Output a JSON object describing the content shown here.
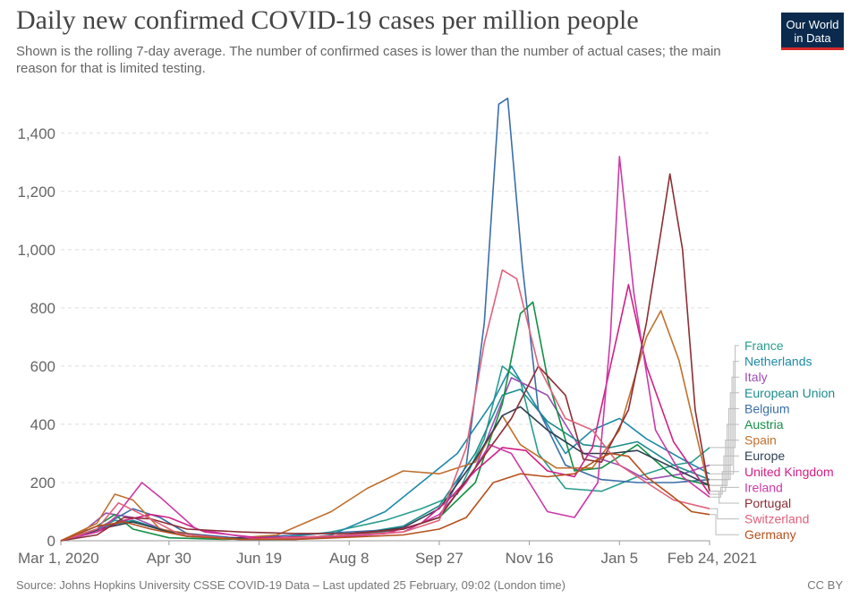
{
  "header": {
    "title": "Daily new confirmed COVID-19 cases per million people",
    "subtitle": "Shown is the rolling 7-day average. The number of confirmed cases is lower than the number of actual cases; the main reason for that is limited testing."
  },
  "logo": {
    "line1": "Our World",
    "line2": "in Data",
    "bg_color": "#0b2a4d",
    "accent_color": "#d42a2a"
  },
  "footer": {
    "source": "Source: Johns Hopkins University CSSE COVID-19 Data – Last updated 25 February, 09:02 (London time)",
    "license": "CC BY"
  },
  "chart_data": {
    "type": "line",
    "title": "Daily new confirmed COVID-19 cases per million people",
    "x_unit": "days since Mar 1, 2020",
    "xlim": [
      0,
      360
    ],
    "ylim": [
      0,
      1550
    ],
    "yticks": [
      0,
      200,
      400,
      600,
      800,
      1000,
      1200,
      1400
    ],
    "ytick_labels": [
      "0",
      "200",
      "400",
      "600",
      "800",
      "1,000",
      "1,200",
      "1,400"
    ],
    "xticks": [
      0,
      60,
      110,
      160,
      210,
      260,
      310,
      360
    ],
    "xtick_labels": [
      "Mar 1, 2020",
      "Apr 30",
      "Jun 19",
      "Aug 8",
      "Sep 27",
      "Nov 16",
      "Jan 5",
      "Feb 24, 2021"
    ],
    "grid": true,
    "series": [
      {
        "name": "France",
        "color": "#2a9d8f",
        "end_value": 320,
        "points": [
          [
            0,
            0
          ],
          [
            20,
            40
          ],
          [
            30,
            70
          ],
          [
            45,
            60
          ],
          [
            60,
            30
          ],
          [
            90,
            10
          ],
          [
            120,
            8
          ],
          [
            150,
            30
          ],
          [
            180,
            70
          ],
          [
            200,
            110
          ],
          [
            220,
            160
          ],
          [
            235,
            350
          ],
          [
            245,
            600
          ],
          [
            255,
            550
          ],
          [
            265,
            300
          ],
          [
            280,
            180
          ],
          [
            300,
            170
          ],
          [
            320,
            220
          ],
          [
            340,
            260
          ],
          [
            350,
            270
          ],
          [
            360,
            320
          ]
        ]
      },
      {
        "name": "Netherlands",
        "color": "#1f8aa8",
        "end_value": 230,
        "points": [
          [
            0,
            0
          ],
          [
            20,
            30
          ],
          [
            35,
            70
          ],
          [
            50,
            50
          ],
          [
            70,
            15
          ],
          [
            100,
            4
          ],
          [
            130,
            5
          ],
          [
            150,
            20
          ],
          [
            180,
            100
          ],
          [
            200,
            200
          ],
          [
            220,
            300
          ],
          [
            240,
            480
          ],
          [
            250,
            600
          ],
          [
            265,
            450
          ],
          [
            280,
            300
          ],
          [
            295,
            380
          ],
          [
            310,
            420
          ],
          [
            325,
            350
          ],
          [
            345,
            280
          ],
          [
            360,
            230
          ]
        ]
      },
      {
        "name": "Italy",
        "color": "#9c4fb2",
        "end_value": 260,
        "points": [
          [
            0,
            0
          ],
          [
            10,
            20
          ],
          [
            25,
            95
          ],
          [
            40,
            80
          ],
          [
            60,
            30
          ],
          [
            90,
            8
          ],
          [
            130,
            5
          ],
          [
            160,
            15
          ],
          [
            190,
            40
          ],
          [
            210,
            80
          ],
          [
            230,
            250
          ],
          [
            250,
            560
          ],
          [
            270,
            500
          ],
          [
            290,
            300
          ],
          [
            310,
            260
          ],
          [
            325,
            210
          ],
          [
            345,
            230
          ],
          [
            360,
            260
          ]
        ]
      },
      {
        "name": "European Union",
        "color": "#1d8c8c",
        "end_value": 210,
        "points": [
          [
            0,
            0
          ],
          [
            25,
            50
          ],
          [
            40,
            70
          ],
          [
            60,
            30
          ],
          [
            90,
            8
          ],
          [
            130,
            8
          ],
          [
            160,
            20
          ],
          [
            190,
            50
          ],
          [
            210,
            120
          ],
          [
            230,
            300
          ],
          [
            245,
            500
          ],
          [
            255,
            520
          ],
          [
            270,
            410
          ],
          [
            290,
            330
          ],
          [
            305,
            320
          ],
          [
            320,
            340
          ],
          [
            340,
            260
          ],
          [
            360,
            210
          ]
        ]
      },
      {
        "name": "Belgium",
        "color": "#3b6ea8",
        "end_value": 210,
        "points": [
          [
            0,
            0
          ],
          [
            20,
            40
          ],
          [
            40,
            110
          ],
          [
            55,
            80
          ],
          [
            70,
            25
          ],
          [
            100,
            8
          ],
          [
            130,
            20
          ],
          [
            160,
            30
          ],
          [
            190,
            40
          ],
          [
            210,
            80
          ],
          [
            225,
            260
          ],
          [
            235,
            750
          ],
          [
            243,
            1500
          ],
          [
            248,
            1520
          ],
          [
            256,
            950
          ],
          [
            265,
            450
          ],
          [
            280,
            260
          ],
          [
            300,
            210
          ],
          [
            320,
            200
          ],
          [
            340,
            200
          ],
          [
            360,
            210
          ]
        ]
      },
      {
        "name": "Austria",
        "color": "#148f45",
        "end_value": 190,
        "points": [
          [
            0,
            0
          ],
          [
            20,
            50
          ],
          [
            30,
            90
          ],
          [
            40,
            40
          ],
          [
            60,
            10
          ],
          [
            90,
            5
          ],
          [
            130,
            10
          ],
          [
            160,
            20
          ],
          [
            190,
            40
          ],
          [
            210,
            80
          ],
          [
            230,
            200
          ],
          [
            245,
            470
          ],
          [
            255,
            780
          ],
          [
            262,
            820
          ],
          [
            270,
            560
          ],
          [
            285,
            240
          ],
          [
            300,
            250
          ],
          [
            320,
            330
          ],
          [
            340,
            220
          ],
          [
            360,
            190
          ]
        ]
      },
      {
        "name": "Spain",
        "color": "#c0702e",
        "end_value": 170,
        "points": [
          [
            0,
            0
          ],
          [
            20,
            60
          ],
          [
            30,
            160
          ],
          [
            40,
            140
          ],
          [
            55,
            40
          ],
          [
            90,
            6
          ],
          [
            120,
            20
          ],
          [
            150,
            100
          ],
          [
            170,
            180
          ],
          [
            190,
            240
          ],
          [
            210,
            230
          ],
          [
            230,
            270
          ],
          [
            245,
            430
          ],
          [
            255,
            330
          ],
          [
            275,
            250
          ],
          [
            295,
            250
          ],
          [
            310,
            380
          ],
          [
            325,
            700
          ],
          [
            333,
            790
          ],
          [
            343,
            620
          ],
          [
            360,
            170
          ]
        ]
      },
      {
        "name": "Europe",
        "color": "#2e3f50",
        "end_value": 190,
        "points": [
          [
            0,
            0
          ],
          [
            25,
            45
          ],
          [
            40,
            65
          ],
          [
            60,
            30
          ],
          [
            90,
            10
          ],
          [
            130,
            10
          ],
          [
            160,
            20
          ],
          [
            190,
            45
          ],
          [
            210,
            110
          ],
          [
            230,
            280
          ],
          [
            245,
            430
          ],
          [
            255,
            460
          ],
          [
            270,
            380
          ],
          [
            290,
            300
          ],
          [
            305,
            300
          ],
          [
            320,
            310
          ],
          [
            340,
            250
          ],
          [
            360,
            190
          ]
        ]
      },
      {
        "name": "United Kingdom",
        "color": "#d21f85",
        "end_value": 160,
        "points": [
          [
            0,
            0
          ],
          [
            20,
            30
          ],
          [
            35,
            70
          ],
          [
            50,
            90
          ],
          [
            60,
            80
          ],
          [
            80,
            30
          ],
          [
            110,
            10
          ],
          [
            150,
            15
          ],
          [
            180,
            25
          ],
          [
            200,
            60
          ],
          [
            215,
            140
          ],
          [
            230,
            240
          ],
          [
            245,
            320
          ],
          [
            258,
            310
          ],
          [
            270,
            240
          ],
          [
            285,
            220
          ],
          [
            295,
            320
          ],
          [
            305,
            600
          ],
          [
            315,
            880
          ],
          [
            325,
            600
          ],
          [
            340,
            340
          ],
          [
            360,
            160
          ]
        ]
      },
      {
        "name": "Ireland",
        "color": "#cc3aa5",
        "end_value": 150,
        "points": [
          [
            0,
            0
          ],
          [
            20,
            30
          ],
          [
            30,
            80
          ],
          [
            45,
            200
          ],
          [
            55,
            150
          ],
          [
            75,
            40
          ],
          [
            110,
            5
          ],
          [
            150,
            10
          ],
          [
            190,
            30
          ],
          [
            210,
            90
          ],
          [
            225,
            200
          ],
          [
            238,
            330
          ],
          [
            250,
            300
          ],
          [
            270,
            100
          ],
          [
            285,
            80
          ],
          [
            298,
            200
          ],
          [
            305,
            700
          ],
          [
            310,
            1320
          ],
          [
            318,
            850
          ],
          [
            330,
            380
          ],
          [
            345,
            220
          ],
          [
            360,
            150
          ]
        ]
      },
      {
        "name": "Portugal",
        "color": "#8c2d34",
        "end_value": 170,
        "points": [
          [
            0,
            0
          ],
          [
            20,
            20
          ],
          [
            35,
            80
          ],
          [
            50,
            75
          ],
          [
            70,
            40
          ],
          [
            100,
            30
          ],
          [
            130,
            25
          ],
          [
            160,
            25
          ],
          [
            190,
            40
          ],
          [
            210,
            80
          ],
          [
            230,
            250
          ],
          [
            250,
            420
          ],
          [
            265,
            600
          ],
          [
            280,
            500
          ],
          [
            290,
            280
          ],
          [
            300,
            270
          ],
          [
            315,
            450
          ],
          [
            325,
            750
          ],
          [
            333,
            1060
          ],
          [
            338,
            1260
          ],
          [
            345,
            1000
          ],
          [
            352,
            450
          ],
          [
            360,
            170
          ]
        ]
      },
      {
        "name": "Switzerland",
        "color": "#e0617c",
        "end_value": 110,
        "points": [
          [
            0,
            0
          ],
          [
            20,
            40
          ],
          [
            32,
            130
          ],
          [
            45,
            90
          ],
          [
            65,
            25
          ],
          [
            100,
            4
          ],
          [
            130,
            10
          ],
          [
            160,
            20
          ],
          [
            190,
            30
          ],
          [
            210,
            70
          ],
          [
            225,
            320
          ],
          [
            235,
            680
          ],
          [
            245,
            930
          ],
          [
            253,
            900
          ],
          [
            265,
            600
          ],
          [
            280,
            420
          ],
          [
            295,
            380
          ],
          [
            310,
            260
          ],
          [
            325,
            200
          ],
          [
            340,
            140
          ],
          [
            360,
            110
          ]
        ]
      },
      {
        "name": "Germany",
        "color": "#b5501c",
        "end_value": 90,
        "points": [
          [
            0,
            0
          ],
          [
            20,
            50
          ],
          [
            35,
            65
          ],
          [
            50,
            40
          ],
          [
            70,
            15
          ],
          [
            100,
            5
          ],
          [
            130,
            5
          ],
          [
            160,
            12
          ],
          [
            190,
            20
          ],
          [
            210,
            40
          ],
          [
            225,
            80
          ],
          [
            240,
            200
          ],
          [
            255,
            230
          ],
          [
            270,
            220
          ],
          [
            285,
            230
          ],
          [
            298,
            280
          ],
          [
            305,
            300
          ],
          [
            315,
            290
          ],
          [
            325,
            220
          ],
          [
            340,
            150
          ],
          [
            350,
            100
          ],
          [
            360,
            90
          ]
        ]
      }
    ]
  }
}
